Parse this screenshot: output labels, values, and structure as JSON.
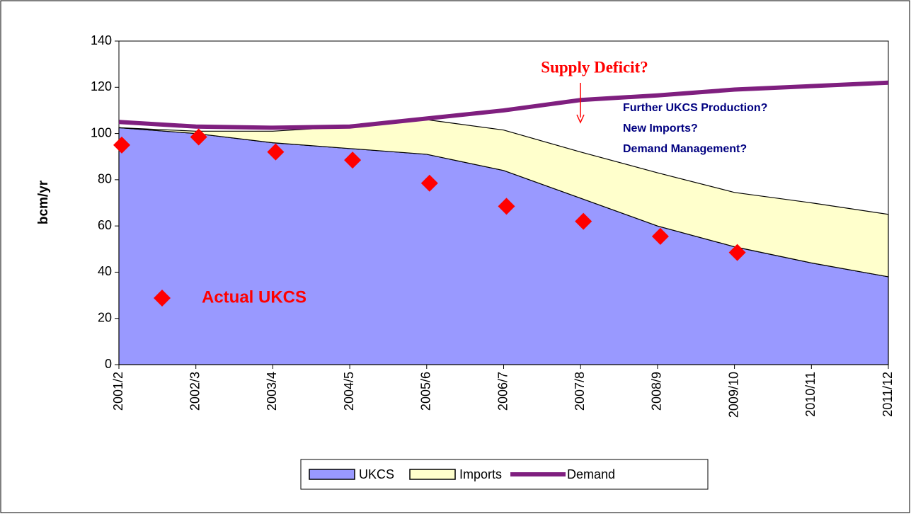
{
  "chart_data": {
    "type": "area",
    "y_label": "bcm/yr",
    "categories": [
      "2001/2",
      "2002/3",
      "2003/4",
      "2004/5",
      "2005/6",
      "2006/7",
      "2007/8",
      "2008/9",
      "2009/10",
      "2010/11",
      "2011/12"
    ],
    "series": [
      {
        "name": "UKCS",
        "type": "area",
        "color": "#9999ff",
        "values": [
          102.5,
          100,
          96,
          93.5,
          91,
          84,
          72,
          60,
          51,
          44,
          38
        ]
      },
      {
        "name": "Imports",
        "type": "area",
        "color": "#ffffcc",
        "values": [
          0,
          1,
          5,
          9.5,
          15,
          17.5,
          20,
          23,
          23.5,
          26,
          27
        ]
      },
      {
        "name": "Demand",
        "type": "line",
        "color": "#7f1f7f",
        "values": [
          105,
          103,
          102.5,
          103,
          106.5,
          110,
          114.5,
          116.5,
          119,
          120.5,
          122
        ]
      },
      {
        "name": "Actual UKCS",
        "type": "scatter",
        "color": "#ff0000",
        "values": [
          95,
          98.5,
          92,
          88.5,
          78.5,
          68.5,
          62,
          55.5,
          48.5,
          null,
          null
        ]
      }
    ],
    "annotations": [
      "Supply Deficit?",
      "Further UKCS Production?",
      "New Imports?",
      "Demand Management?"
    ],
    "ylim": [
      0,
      140
    ],
    "yticks": [
      0,
      20,
      40,
      60,
      80,
      100,
      120,
      140
    ],
    "grid": false
  }
}
